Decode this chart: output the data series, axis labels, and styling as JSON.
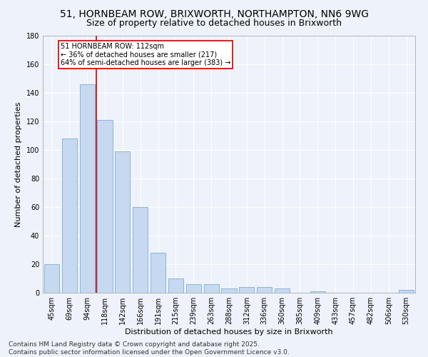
{
  "title": "51, HORNBEAM ROW, BRIXWORTH, NORTHAMPTON, NN6 9WG",
  "subtitle": "Size of property relative to detached houses in Brixworth",
  "xlabel": "Distribution of detached houses by size in Brixworth",
  "ylabel": "Number of detached properties",
  "categories": [
    "45sqm",
    "69sqm",
    "94sqm",
    "118sqm",
    "142sqm",
    "166sqm",
    "191sqm",
    "215sqm",
    "239sqm",
    "263sqm",
    "288sqm",
    "312sqm",
    "336sqm",
    "360sqm",
    "385sqm",
    "409sqm",
    "433sqm",
    "457sqm",
    "482sqm",
    "506sqm",
    "530sqm"
  ],
  "values": [
    20,
    108,
    146,
    121,
    99,
    60,
    28,
    10,
    6,
    6,
    3,
    4,
    4,
    3,
    0,
    1,
    0,
    0,
    0,
    0,
    2
  ],
  "bar_color": "#c6d9f1",
  "bar_edge_color": "#7bafd4",
  "annotation_text": "51 HORNBEAM ROW: 112sqm\n← 36% of detached houses are smaller (217)\n64% of semi-detached houses are larger (383) →",
  "annotation_box_color": "#ffffff",
  "annotation_border_color": "#cc0000",
  "ylim": [
    0,
    180
  ],
  "yticks": [
    0,
    20,
    40,
    60,
    80,
    100,
    120,
    140,
    160,
    180
  ],
  "footer": "Contains HM Land Registry data © Crown copyright and database right 2025.\nContains public sector information licensed under the Open Government Licence v3.0.",
  "background_color": "#eef2fa",
  "grid_color": "#ffffff",
  "title_fontsize": 10,
  "subtitle_fontsize": 9,
  "axis_label_fontsize": 8,
  "tick_fontsize": 7,
  "annotation_fontsize": 7,
  "footer_fontsize": 6.5
}
